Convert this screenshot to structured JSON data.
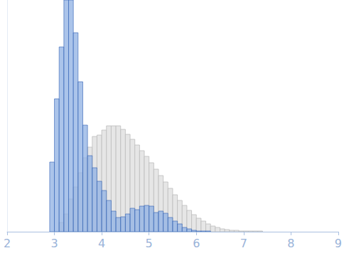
{
  "chart_data": {
    "type": "histogram",
    "series": [
      {
        "color": "#e6e6e6",
        "bins": [
          3.1,
          3.2,
          3.3,
          3.4,
          3.5,
          3.6,
          3.7,
          3.8,
          3.9,
          4.0,
          4.1,
          4.2,
          4.3,
          4.4,
          4.5,
          4.6,
          4.7,
          4.8,
          4.9,
          5.0,
          5.1,
          5.2,
          5.3,
          5.4,
          5.5,
          5.6,
          5.7,
          5.8,
          5.9,
          6.0,
          6.1,
          6.2,
          6.3,
          6.4,
          6.5,
          6.6,
          6.7,
          6.8,
          6.9,
          7.0,
          7.1,
          7.2,
          7.3,
          7.4
        ],
        "values": [
          13,
          25,
          46,
          63,
          83,
          104,
          119,
          134,
          136,
          143,
          149,
          149,
          149,
          144,
          137,
          130,
          122,
          114,
          106,
          97,
          88,
          79,
          70,
          61,
          52,
          44,
          37,
          30,
          24,
          19,
          15,
          11,
          8,
          6,
          4,
          3,
          2,
          2,
          1,
          1,
          1,
          1,
          1
        ]
      },
      {
        "color": "#8fb0e3",
        "bins": [
          2.9,
          3.0,
          3.1,
          3.2,
          3.3,
          3.4,
          3.5,
          3.6,
          3.7,
          3.8,
          3.9,
          4.0,
          4.1,
          4.2,
          4.3,
          4.4,
          4.5,
          4.6,
          4.7,
          4.8,
          4.9,
          5.0,
          5.1,
          5.2,
          5.3,
          5.4,
          5.5,
          5.6,
          5.7,
          5.8,
          5.9,
          6.0,
          6.1,
          6.2,
          6.3
        ],
        "values": [
          98,
          187,
          260,
          326,
          326,
          280,
          211,
          150,
          107,
          90,
          71,
          58,
          44,
          29,
          20,
          21,
          25,
          33,
          31,
          36,
          37,
          36,
          27,
          29,
          26,
          20,
          15,
          11,
          6,
          4,
          2,
          1,
          1,
          1
        ]
      }
    ],
    "xlim": [
      2,
      9
    ],
    "xticks": [
      2,
      3,
      4,
      5,
      6,
      7,
      8,
      9
    ],
    "ylim": [
      0,
      326
    ],
    "yticks": [],
    "tick_labels": "x",
    "grid": false
  }
}
